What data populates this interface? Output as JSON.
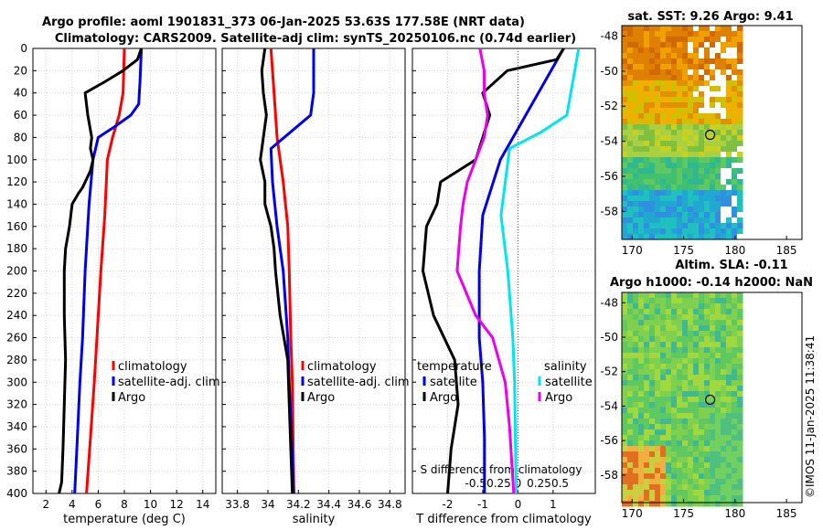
{
  "figure": {
    "title_line1": "Argo profile: aoml 1901831_373 06-Jan-2025 53.63S 177.58E (NRT data)",
    "title_line2": "Climatology: CARS2009. Satellite-adj clim: synTS_20250106.nc (0.74d earlier)",
    "credit": "©IMOS 11-Jan-2025 11:38:41"
  },
  "chart_data": [
    {
      "id": "temperature",
      "type": "line",
      "xlabel": "temperature (deg C)",
      "ylabel": "",
      "xlim": [
        1,
        15
      ],
      "ylim": [
        400,
        0
      ],
      "xticks": [
        2,
        4,
        6,
        8,
        10,
        12,
        14
      ],
      "yticks": [
        0,
        20,
        40,
        60,
        80,
        100,
        120,
        140,
        160,
        180,
        200,
        220,
        240,
        260,
        280,
        300,
        320,
        340,
        360,
        380,
        400
      ],
      "legend": {
        "placement": "lower-right",
        "entries": [
          "climatology",
          "satellite-adj. clim",
          "Argo"
        ]
      },
      "series": [
        {
          "name": "climatology",
          "color": "#ff0000",
          "depth": [
            0,
            40,
            60,
            80,
            100,
            150,
            200,
            260,
            300,
            350,
            400
          ],
          "values": [
            8.0,
            7.9,
            7.6,
            7.1,
            6.7,
            6.5,
            6.2,
            5.9,
            5.7,
            5.4,
            5.1
          ]
        },
        {
          "name": "satellite-adj. clim",
          "color": "#0000ee",
          "depth": [
            0,
            30,
            50,
            60,
            70,
            80,
            100,
            140,
            200,
            260,
            300,
            350,
            400
          ],
          "values": [
            9.3,
            9.2,
            9.1,
            8.5,
            7.3,
            6.0,
            5.6,
            5.3,
            5.0,
            4.8,
            4.6,
            4.4,
            4.2
          ]
        },
        {
          "name": "Argo",
          "color": "#000000",
          "depth": [
            0,
            10,
            20,
            30,
            40,
            60,
            80,
            90,
            100,
            110,
            125,
            130,
            140,
            160,
            180,
            200,
            240,
            280,
            320,
            360,
            390,
            400
          ],
          "values": [
            9.3,
            9.0,
            7.9,
            6.5,
            5.0,
            5.2,
            5.5,
            5.4,
            5.6,
            5.4,
            4.8,
            4.5,
            4.0,
            3.8,
            3.5,
            3.4,
            3.4,
            3.5,
            3.4,
            3.3,
            3.2,
            3.0
          ]
        }
      ]
    },
    {
      "id": "salinity",
      "type": "line",
      "xlabel": "salinity",
      "ylabel": "",
      "xlim": [
        33.7,
        34.9
      ],
      "ylim": [
        400,
        0
      ],
      "xticks": [
        33.8,
        34,
        34.2,
        34.4,
        34.6,
        34.8
      ],
      "yticks": [
        0,
        20,
        40,
        60,
        80,
        100,
        120,
        140,
        160,
        180,
        200,
        220,
        240,
        260,
        280,
        300,
        320,
        340,
        360,
        380,
        400
      ],
      "legend": {
        "placement": "lower-right",
        "entries": [
          "climatology",
          "satellite-adj. clim",
          "Argo"
        ]
      },
      "series": [
        {
          "name": "climatology",
          "color": "#ff0000",
          "depth": [
            0,
            40,
            80,
            120,
            160,
            200,
            260,
            300,
            400
          ],
          "values": [
            34.02,
            34.04,
            34.06,
            34.1,
            34.13,
            34.14,
            34.15,
            34.16,
            34.17
          ]
        },
        {
          "name": "satellite-adj. clim",
          "color": "#0000ee",
          "depth": [
            0,
            40,
            60,
            75,
            90,
            120,
            160,
            200,
            260,
            300,
            400
          ],
          "values": [
            34.3,
            34.3,
            34.28,
            34.15,
            34.02,
            34.03,
            34.06,
            34.1,
            34.13,
            34.14,
            34.17
          ]
        },
        {
          "name": "Argo",
          "color": "#000000",
          "depth": [
            0,
            20,
            40,
            60,
            80,
            100,
            120,
            140,
            160,
            180,
            200,
            240,
            280,
            320,
            360,
            400
          ],
          "values": [
            33.98,
            33.96,
            33.97,
            33.99,
            33.97,
            33.95,
            33.98,
            33.98,
            34.02,
            34.04,
            34.05,
            34.08,
            34.13,
            34.14,
            34.15,
            34.16
          ]
        }
      ]
    },
    {
      "id": "difference",
      "type": "line",
      "xlabel": "T difference from climatology",
      "xlabel_top": "S difference from climatology",
      "xlim": [
        -3,
        2.2
      ],
      "ylim": [
        400,
        0
      ],
      "xticks": [
        -2,
        -1,
        0,
        1
      ],
      "xticks_S": [
        -0.5,
        -0.25,
        0,
        0.25,
        0.5
      ],
      "xticks_S_labels": [
        "-0.5",
        "-0.25",
        "0",
        "0.25",
        "0.5"
      ],
      "yticks": [
        0,
        20,
        40,
        60,
        80,
        100,
        120,
        140,
        160,
        180,
        200,
        220,
        240,
        260,
        280,
        300,
        320,
        340,
        360,
        380,
        400
      ],
      "legend": {
        "temperature_header": "temperature",
        "salinity_header": "salinity",
        "entries_temperature": [
          "satellite",
          "Argo"
        ],
        "entries_salinity": [
          "satellite",
          "Argo"
        ]
      },
      "series": [
        {
          "name": "temperature satellite",
          "color": "#0000ee",
          "depth": [
            0,
            100,
            150,
            200,
            260,
            300,
            350,
            400
          ],
          "values": [
            1.3,
            -0.5,
            -1.0,
            -1.1,
            -1.1,
            -1.0,
            -0.95,
            -0.95
          ]
        },
        {
          "name": "temperature Argo",
          "color": "#000000",
          "depth": [
            0,
            10,
            20,
            40,
            60,
            80,
            100,
            120,
            140,
            160,
            200,
            240,
            280,
            320,
            360,
            400
          ],
          "values": [
            1.3,
            1.1,
            -0.3,
            -1.0,
            -0.8,
            -1.0,
            -1.2,
            -2.2,
            -2.3,
            -2.6,
            -2.7,
            -2.4,
            -1.8,
            -1.7,
            -1.9,
            -2.0
          ]
        },
        {
          "name": "salinity satellite",
          "color": "#00e5ee",
          "depth": [
            0,
            60,
            75,
            90,
            150,
            200,
            260,
            300,
            400
          ],
          "values": [
            0.72,
            0.58,
            0.28,
            -0.1,
            -0.2,
            -0.12,
            -0.06,
            -0.04,
            -0.02
          ]
        },
        {
          "name": "salinity Argo",
          "color": "#ee00ee",
          "depth": [
            0,
            20,
            40,
            60,
            80,
            100,
            120,
            140,
            160,
            200,
            240,
            260,
            300,
            340,
            400
          ],
          "values": [
            -0.45,
            -0.4,
            -0.4,
            -0.36,
            -0.4,
            -0.5,
            -0.6,
            -0.65,
            -0.68,
            -0.72,
            -0.5,
            -0.3,
            -0.15,
            -0.1,
            -0.05
          ]
        }
      ]
    },
    {
      "id": "sst_map",
      "type": "heatmap",
      "title": "sat. SST: 9.26 Argo: 9.41",
      "xlim": [
        169,
        186.5
      ],
      "ylim": [
        -59.6,
        -47.4
      ],
      "xticks": [
        170,
        175,
        180,
        185
      ],
      "yticks": [
        -48,
        -50,
        -52,
        -54,
        -56,
        -58
      ],
      "argo_position": {
        "lon": 177.58,
        "lat": -53.63
      }
    },
    {
      "id": "sla_map",
      "type": "heatmap",
      "title_line1": "Altim. SLA: -0.11",
      "title_line2": "Argo h1000: -0.14 h2000: NaN",
      "xlim": [
        169,
        186.5
      ],
      "ylim": [
        -59.6,
        -47.4
      ],
      "xticks": [
        170,
        175,
        180,
        185
      ],
      "yticks": [
        -48,
        -50,
        -52,
        -54,
        -56,
        -58
      ],
      "argo_position": {
        "lon": 177.58,
        "lat": -53.63
      }
    }
  ]
}
